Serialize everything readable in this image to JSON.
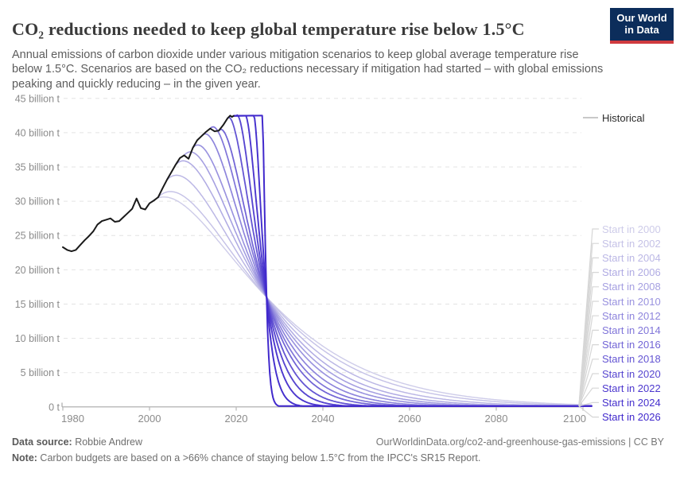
{
  "header": {
    "title": "CO₂ reductions needed to keep global temperature rise below 1.5°C",
    "subtitle": "Annual emissions of carbon dioxide under various mitigation scenarios to keep global average temperature rise below 1.5°C. Scenarios are based on the CO₂ reductions necessary if mitigation had started – with global emissions peaking and quickly reducing – in the given year.",
    "logo": {
      "line1": "Our World",
      "line2": "in Data",
      "bg_color": "#0c2d5b",
      "accent_color": "#d03a3f"
    }
  },
  "chart": {
    "y_ticks": [
      {
        "value": 45,
        "label": "45 billion t"
      },
      {
        "value": 40,
        "label": "40 billion t"
      },
      {
        "value": 35,
        "label": "35 billion t"
      },
      {
        "value": 30,
        "label": "30 billion t"
      },
      {
        "value": 25,
        "label": "25 billion t"
      },
      {
        "value": 20,
        "label": "20 billion t"
      },
      {
        "value": 15,
        "label": "15 billion t"
      },
      {
        "value": 10,
        "label": "10 billion t"
      },
      {
        "value": 5,
        "label": "5 billion t"
      },
      {
        "value": 0,
        "label": "0 t"
      }
    ],
    "x_ticks": [
      {
        "year": 1980,
        "label": "1980"
      },
      {
        "year": 2000,
        "label": "2000"
      },
      {
        "year": 2020,
        "label": "2020"
      },
      {
        "year": 2040,
        "label": "2040"
      },
      {
        "year": 2060,
        "label": "2060"
      },
      {
        "year": 2080,
        "label": "2080"
      },
      {
        "year": 2100,
        "label": "2100"
      }
    ],
    "colors": {
      "grid": "#e3e3e3",
      "axis": "#a8a8a8",
      "tick_label": "#8b8b8b",
      "connector": "#d6d6d6",
      "historical_line": "#1a1a1a",
      "historical_label": "#2b2b2b"
    }
  },
  "chart_data": {
    "type": "line",
    "unit": "billion t CO₂ per year",
    "x_range": [
      1980,
      2102
    ],
    "y_range": [
      0,
      45
    ],
    "historical": {
      "label": "Historical",
      "points": [
        [
          1980,
          23.3
        ],
        [
          1981,
          22.9
        ],
        [
          1982,
          22.7
        ],
        [
          1983,
          22.9
        ],
        [
          1984,
          23.6
        ],
        [
          1985,
          24.3
        ],
        [
          1986,
          24.9
        ],
        [
          1987,
          25.6
        ],
        [
          1988,
          26.6
        ],
        [
          1989,
          27.1
        ],
        [
          1990,
          27.3
        ],
        [
          1991,
          27.5
        ],
        [
          1992,
          27.0
        ],
        [
          1993,
          27.1
        ],
        [
          1994,
          27.7
        ],
        [
          1995,
          28.3
        ],
        [
          1996,
          28.9
        ],
        [
          1997,
          30.4
        ],
        [
          1998,
          29.0
        ],
        [
          1999,
          28.8
        ],
        [
          2000,
          29.7
        ],
        [
          2001,
          30.1
        ],
        [
          2002,
          30.6
        ],
        [
          2003,
          31.9
        ],
        [
          2004,
          33.1
        ],
        [
          2005,
          34.2
        ],
        [
          2006,
          35.3
        ],
        [
          2007,
          36.3
        ],
        [
          2008,
          36.7
        ],
        [
          2009,
          36.2
        ],
        [
          2010,
          37.8
        ],
        [
          2011,
          38.9
        ],
        [
          2012,
          39.5
        ],
        [
          2013,
          40.1
        ],
        [
          2014,
          40.6
        ],
        [
          2015,
          40.2
        ],
        [
          2016,
          40.3
        ],
        [
          2017,
          41.1
        ],
        [
          2018,
          42.1
        ],
        [
          2018.6,
          42.5
        ],
        [
          2019,
          42.3
        ],
        [
          2019.4,
          42.45
        ]
      ]
    },
    "mitigation": {
      "growth_rate": 0.02,
      "pinch": {
        "year": 2027,
        "value": 16
      },
      "flat_from": {
        "year": 2019.4,
        "value": 42.45
      },
      "scenarios": [
        {
          "label": "Start in 2000",
          "start": 2000,
          "e0": 29.7,
          "color": "#cecce9"
        },
        {
          "label": "Start in 2002",
          "start": 2002,
          "e0": 30.6,
          "color": "#c5c2e7"
        },
        {
          "label": "Start in 2004",
          "start": 2004,
          "e0": 33.1,
          "color": "#bbb7e5"
        },
        {
          "label": "Start in 2006",
          "start": 2006,
          "e0": 35.3,
          "color": "#b0abe3"
        },
        {
          "label": "Start in 2008",
          "start": 2008,
          "e0": 36.7,
          "color": "#a59fe1"
        },
        {
          "label": "Start in 2010",
          "start": 2010,
          "e0": 37.8,
          "color": "#9992df"
        },
        {
          "label": "Start in 2012",
          "start": 2012,
          "e0": 39.5,
          "color": "#8d84dc"
        },
        {
          "label": "Start in 2014",
          "start": 2014,
          "e0": 40.6,
          "color": "#8075d9"
        },
        {
          "label": "Start in 2016",
          "start": 2016,
          "e0": 40.3,
          "color": "#7265d6"
        },
        {
          "label": "Start in 2018",
          "start": 2018,
          "e0": 42.1,
          "color": "#6455d3"
        },
        {
          "label": "Start in 2020",
          "start": 2020,
          "e0": 42.5,
          "color": "#5645d0"
        },
        {
          "label": "Start in 2022",
          "start": 2022,
          "e0": 42.5,
          "color": "#4c37ce"
        },
        {
          "label": "Start in 2024",
          "start": 2024,
          "e0": 42.5,
          "color": "#4530cd"
        },
        {
          "label": "Start in 2026",
          "start": 2026,
          "e0": 42.5,
          "color": "#4028cc"
        }
      ]
    }
  },
  "footer": {
    "source_label": "Data source:",
    "source_value": " Robbie Andrew",
    "link": "OurWorldinData.org/co2-and-greenhouse-gas-emissions | CC BY",
    "note_label": "Note:",
    "note_value": " Carbon budgets are based on a >66% chance of staying below 1.5°C from the IPCC's SR15 Report."
  }
}
